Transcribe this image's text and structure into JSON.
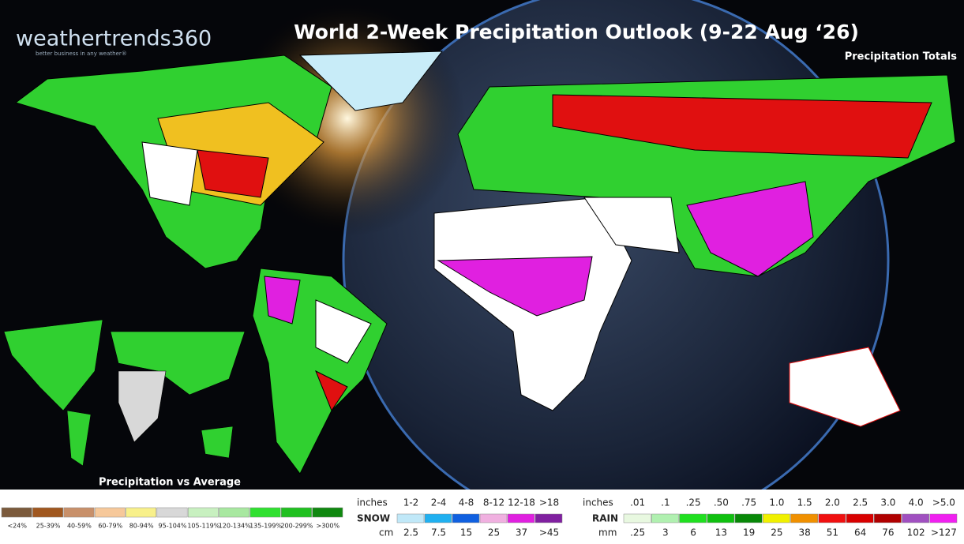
{
  "header": {
    "logo": "weathertrends360",
    "tagline": "better business in any weather®",
    "title": "World 2-Week Precipitation Outlook (9-22 Aug ‘26)",
    "subtitle": "Precipitation Totals"
  },
  "inset_label": "Precipitation vs Average",
  "legend_average": {
    "items": [
      {
        "label": "<24%",
        "color": "#7b5a3c"
      },
      {
        "label": "25-39%",
        "color": "#a0571f"
      },
      {
        "label": "40-59%",
        "color": "#c8906a"
      },
      {
        "label": "60-79%",
        "color": "#f6c89a"
      },
      {
        "label": "80-94%",
        "color": "#f8f08a"
      },
      {
        "label": "95-104%",
        "color": "#d8d8d8"
      },
      {
        "label": "105-119%",
        "color": "#c8f0c0"
      },
      {
        "label": "120-134%",
        "color": "#a8e8a0"
      },
      {
        "label": "135-199%",
        "color": "#30e030"
      },
      {
        "label": "200-299%",
        "color": "#20c020"
      },
      {
        "label": ">300%",
        "color": "#108810"
      }
    ]
  },
  "legend_snow": {
    "units_top": "inches",
    "name": "SNOW",
    "units_bottom": "cm",
    "inches": [
      "1-2",
      "2-4",
      "4-8",
      "8-12",
      "12-18",
      ">18"
    ],
    "cm": [
      "2.5",
      "7.5",
      "15",
      "25",
      "37",
      ">45"
    ],
    "colors": [
      "#c0e8f8",
      "#20b0f0",
      "#1060e0",
      "#f0b0e0",
      "#e020e0",
      "#8020a0"
    ]
  },
  "legend_rain": {
    "units_top": "inches",
    "name": "RAIN",
    "units_bottom": "mm",
    "inches": [
      ".01",
      ".1",
      ".25",
      ".50",
      ".75",
      "1.0",
      "1.5",
      "2.0",
      "2.5",
      "3.0",
      "4.0",
      ">5.0"
    ],
    "mm": [
      ".25",
      "3",
      "6",
      "13",
      "19",
      "25",
      "38",
      "51",
      "64",
      "76",
      "102",
      ">127"
    ],
    "colors": [
      "#e8f8e0",
      "#b0f0b0",
      "#20e020",
      "#10c010",
      "#088808",
      "#f0f000",
      "#f09000",
      "#f01010",
      "#d80000",
      "#b00000",
      "#a050c0",
      "#f020f0"
    ]
  }
}
